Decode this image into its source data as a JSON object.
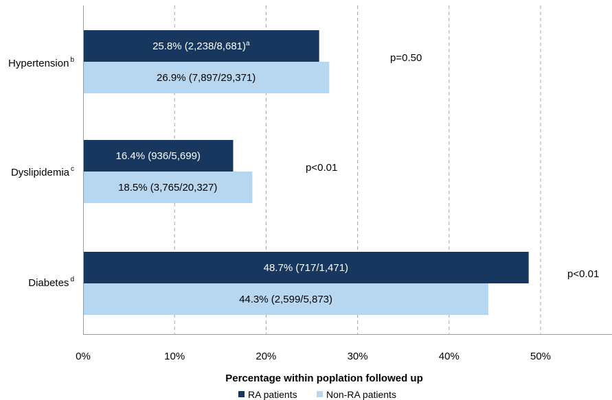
{
  "chart_data": {
    "type": "bar",
    "orientation": "horizontal",
    "xlabel": "Percentage within poplation followed up",
    "xlim": [
      0,
      58
    ],
    "xticks": [
      "0%",
      "10%",
      "20%",
      "30%",
      "40%",
      "50%"
    ],
    "grid": true,
    "legend_position": "bottom",
    "categories": [
      {
        "name": "Hypertension",
        "superscript": "b",
        "p_value": "p=0.50"
      },
      {
        "name": "Dyslipidemia",
        "superscript": "c",
        "p_value": "p<0.01"
      },
      {
        "name": "Diabetes",
        "superscript": "d",
        "p_value": "p<0.01"
      }
    ],
    "series": [
      {
        "name": "RA patients",
        "color": "#17375e",
        "values": [
          25.8,
          16.4,
          48.7
        ],
        "labels": [
          "25.8% (2,238/8,681)",
          "16.4% (936/5,699)",
          "48.7% (717/1,471)"
        ],
        "label_superscripts": [
          "a",
          "",
          ""
        ]
      },
      {
        "name": "Non-RA patients",
        "color": "#b7d7f0",
        "values": [
          26.9,
          18.5,
          44.3
        ],
        "labels": [
          "26.9% (7,897/29,371)",
          "18.5% (3,765/20,327)",
          "44.3% (2,599/5,873)"
        ],
        "label_superscripts": [
          "",
          "",
          ""
        ]
      }
    ]
  }
}
